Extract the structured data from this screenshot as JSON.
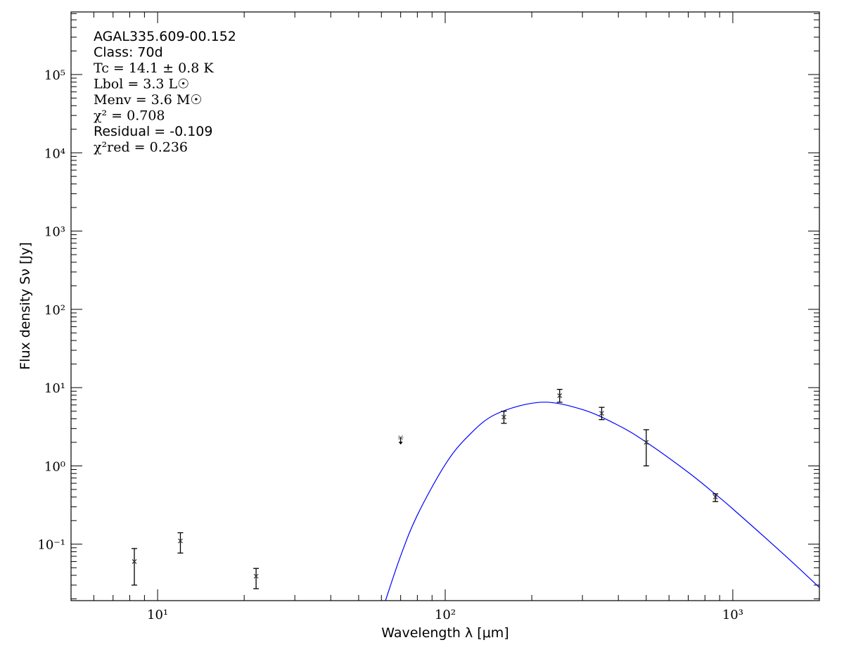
{
  "chart_data": {
    "type": "scatter",
    "xlabel": "Wavelength λ [μm]",
    "ylabel": "Flux density Sν [Jy]",
    "xscale": "log",
    "yscale": "log",
    "xlim": [
      5,
      2000
    ],
    "ylim": [
      0.019,
      630000
    ],
    "x_tick_labels": [
      {
        "value": 10,
        "label": "10¹"
      },
      {
        "value": 100,
        "label": "10²"
      },
      {
        "value": 1000,
        "label": "10³"
      }
    ],
    "y_tick_labels": [
      {
        "value": 0.1,
        "label": "10⁻¹"
      },
      {
        "value": 1,
        "label": "10⁰"
      },
      {
        "value": 10,
        "label": "10¹"
      },
      {
        "value": 100,
        "label": "10²"
      },
      {
        "value": 1000,
        "label": "10³"
      },
      {
        "value": 10000,
        "label": "10⁴"
      },
      {
        "value": 100000,
        "label": "10⁵"
      }
    ],
    "grid": false,
    "annotations": [
      "AGAL335.609-00.152",
      "Class: 70d",
      "Tc = 14.1 ± 0.8 K",
      "Lbol = 3.3 L☉",
      "Menv = 3.6 M☉",
      "χ² = 0.708",
      "Residual = -0.109",
      "χ²red = 0.236"
    ],
    "points": [
      {
        "x": 8.3,
        "y": 0.06,
        "ylo": 0.03,
        "yhi": 0.088
      },
      {
        "x": 12,
        "y": 0.11,
        "ylo": 0.077,
        "yhi": 0.14
      },
      {
        "x": 22,
        "y": 0.039,
        "ylo": 0.027,
        "yhi": 0.049
      },
      {
        "x": 70,
        "y": 2.3,
        "upper_limit": true
      },
      {
        "x": 160,
        "y": 4.2,
        "ylo": 3.5,
        "yhi": 5.0
      },
      {
        "x": 250,
        "y": 7.9,
        "ylo": 6.5,
        "yhi": 9.5
      },
      {
        "x": 350,
        "y": 4.7,
        "ylo": 3.9,
        "yhi": 5.6
      },
      {
        "x": 500,
        "y": 2.0,
        "ylo": 1.0,
        "yhi": 2.9
      },
      {
        "x": 870,
        "y": 0.4,
        "ylo": 0.35,
        "yhi": 0.44
      }
    ],
    "model_curve": {
      "color": "#0000ff",
      "x": [
        62,
        70,
        80,
        100,
        120,
        150,
        215,
        300,
        400,
        500,
        700,
        870,
        1000,
        1500,
        2000
      ],
      "y": [
        0.019,
        0.071,
        0.235,
        1.04,
        2.39,
        4.58,
        6.5,
        5.25,
        3.29,
        2.01,
        0.827,
        0.434,
        0.282,
        0.0747,
        0.028
      ]
    },
    "point_color": "#000000",
    "upper_limit_color": "#888888"
  }
}
